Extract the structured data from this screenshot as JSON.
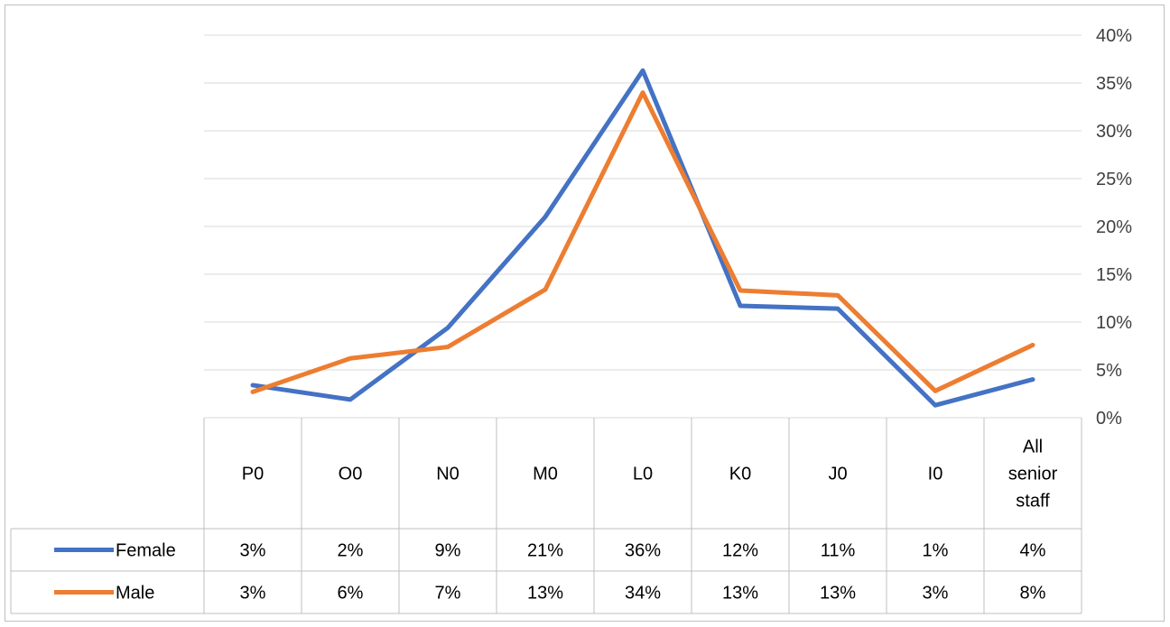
{
  "chart_data": {
    "type": "line",
    "categories": [
      "P0",
      "O0",
      "N0",
      "M0",
      "L0",
      "K0",
      "J0",
      "I0",
      "All senior staff"
    ],
    "series": [
      {
        "name": "Female",
        "color": "#4472C4",
        "values": [
          3.4,
          1.9,
          9.4,
          21.0,
          36.3,
          11.7,
          11.4,
          1.3,
          4.0
        ],
        "labels": [
          "3%",
          "2%",
          "9%",
          "21%",
          "36%",
          "12%",
          "11%",
          "1%",
          "4%"
        ]
      },
      {
        "name": "Male",
        "color": "#ED7D31",
        "values": [
          2.7,
          6.2,
          7.4,
          13.4,
          34.0,
          13.3,
          12.8,
          2.8,
          7.6
        ],
        "labels": [
          "3%",
          "6%",
          "7%",
          "13%",
          "34%",
          "13%",
          "13%",
          "3%",
          "8%"
        ]
      }
    ],
    "y_axis": {
      "position": "right",
      "min": 0,
      "max": 40,
      "step": 5,
      "tick_labels": [
        "0%",
        "5%",
        "10%",
        "15%",
        "20%",
        "25%",
        "30%",
        "35%",
        "40%"
      ]
    },
    "grid": true,
    "legend": "data-table",
    "colors": {
      "grid": "#d9d9d9",
      "table_border": "#bfbfbf",
      "axis_text": "#404040"
    }
  }
}
